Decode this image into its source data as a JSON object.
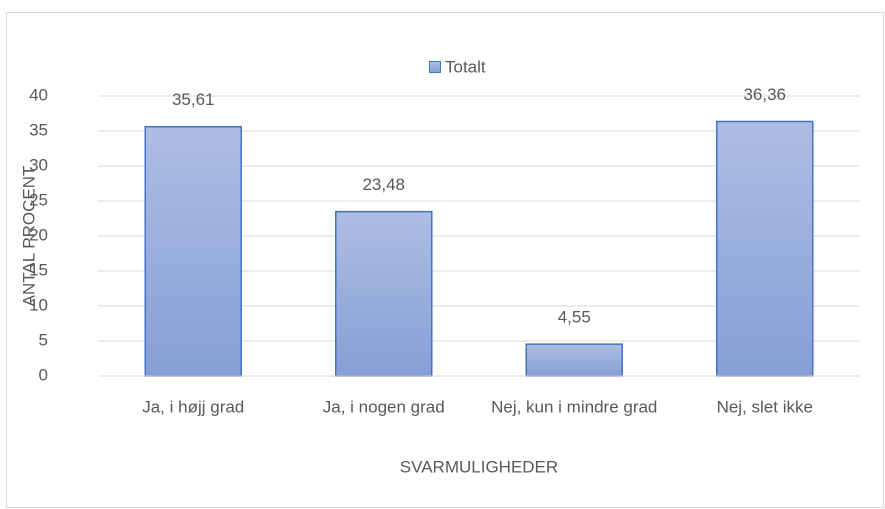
{
  "chart_data": {
    "type": "bar",
    "categories": [
      "Ja, i højj grad",
      "Ja, i nogen grad",
      "Nej, kun i mindre grad",
      "Nej, slet ikke"
    ],
    "series": [
      {
        "name": "Totalt",
        "color": "#4472c4",
        "values": [
          35.61,
          23.48,
          4.55,
          36.36
        ],
        "value_labels": [
          "35,61",
          "23,48",
          "4,55",
          "36,36"
        ]
      }
    ],
    "ylim": [
      0,
      40
    ],
    "yticks": [
      0,
      5,
      10,
      15,
      20,
      25,
      30,
      35,
      40
    ],
    "grid": true,
    "ylabel": "ANTAL PROCENT",
    "xlabel": "SVARMULIGHEDER",
    "legend": "top"
  }
}
